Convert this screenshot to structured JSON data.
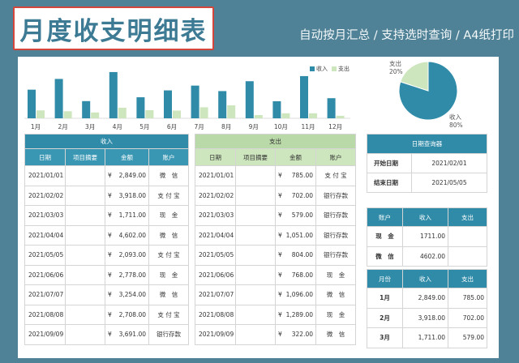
{
  "header": {
    "title": "月度收支明细表",
    "subtitle": "自动按月汇总 / 支持选时查询 / A4纸打印"
  },
  "chart_data": [
    {
      "type": "bar",
      "categories": [
        "1月",
        "2月",
        "3月",
        "4月",
        "5月",
        "6月",
        "7月",
        "8月",
        "9月",
        "10月",
        "11月",
        "12月"
      ],
      "series": [
        {
          "name": "收入",
          "values": [
            2849,
            3918,
            1711,
            4602,
            2093,
            2778,
            3254,
            2708,
            3691,
            1700,
            4200,
            2000
          ]
        },
        {
          "name": "支出",
          "values": [
            785,
            702,
            579,
            1051,
            804,
            768,
            1096,
            1289,
            322,
            500,
            500,
            250
          ]
        }
      ],
      "colors": {
        "收入": "#2f8ba8",
        "支出": "#cde6bd"
      },
      "legend": "top-right",
      "ylim": [
        0,
        5000
      ],
      "grid": false
    },
    {
      "type": "pie",
      "labels": [
        "收入",
        "支出"
      ],
      "values": [
        80,
        20
      ],
      "value_labels": [
        "80%",
        "20%"
      ],
      "colors": {
        "收入": "#2f8ba8",
        "支出": "#cde6bd"
      }
    }
  ],
  "income_table": {
    "title": "收入",
    "columns": [
      "日期",
      "项目摘要",
      "金额",
      "账户"
    ],
    "currency": "¥",
    "rows": [
      {
        "date": "2021/01/01",
        "summary": "",
        "amount": "2,849.00",
        "account": "微　信"
      },
      {
        "date": "2021/02/02",
        "summary": "",
        "amount": "3,918.00",
        "account": "支 付 宝"
      },
      {
        "date": "2021/03/03",
        "summary": "",
        "amount": "1,711.00",
        "account": "现　金"
      },
      {
        "date": "2021/04/04",
        "summary": "",
        "amount": "4,602.00",
        "account": "微　信"
      },
      {
        "date": "2021/05/05",
        "summary": "",
        "amount": "2,093.00",
        "account": "支 付 宝"
      },
      {
        "date": "2021/06/06",
        "summary": "",
        "amount": "2,778.00",
        "account": "现　金"
      },
      {
        "date": "2021/07/07",
        "summary": "",
        "amount": "3,254.00",
        "account": "微　信"
      },
      {
        "date": "2021/08/08",
        "summary": "",
        "amount": "2,708.00",
        "account": "支 付 宝"
      },
      {
        "date": "2021/09/09",
        "summary": "",
        "amount": "3,691.00",
        "account": "银行存款"
      }
    ]
  },
  "expense_table": {
    "title": "支出",
    "columns": [
      "日期",
      "项目摘要",
      "金额",
      "账户"
    ],
    "currency": "¥",
    "rows": [
      {
        "date": "2021/01/01",
        "summary": "",
        "amount": "785.00",
        "account": "支 付 宝"
      },
      {
        "date": "2021/02/02",
        "summary": "",
        "amount": "702.00",
        "account": "银行存款"
      },
      {
        "date": "2021/03/03",
        "summary": "",
        "amount": "579.00",
        "account": "银行存款"
      },
      {
        "date": "2021/04/04",
        "summary": "",
        "amount": "1,051.00",
        "account": "银行存款"
      },
      {
        "date": "2021/05/05",
        "summary": "",
        "amount": "804.00",
        "account": "银行存款"
      },
      {
        "date": "2021/06/06",
        "summary": "",
        "amount": "768.00",
        "account": "现　金"
      },
      {
        "date": "2021/07/07",
        "summary": "",
        "amount": "1,096.00",
        "account": "微　信"
      },
      {
        "date": "2021/08/08",
        "summary": "",
        "amount": "1,289.00",
        "account": "现　金"
      },
      {
        "date": "2021/09/09",
        "summary": "",
        "amount": "322.00",
        "account": "微　信"
      }
    ]
  },
  "date_query": {
    "title": "日期查询器",
    "start_label": "开始日期",
    "start_value": "2021/02/01",
    "end_label": "结束日期",
    "end_value": "2021/05/05"
  },
  "account_summary": {
    "columns": [
      "账户",
      "收入",
      "支出"
    ],
    "rows": [
      {
        "account": "现　金",
        "income": "1711.00",
        "expense": ""
      },
      {
        "account": "微　信",
        "income": "4602.00",
        "expense": ""
      }
    ]
  },
  "month_summary": {
    "columns": [
      "月份",
      "收入",
      "支出"
    ],
    "rows": [
      {
        "month": "1月",
        "income": "2,849.00",
        "expense": "785.00"
      },
      {
        "month": "2月",
        "income": "3,918.00",
        "expense": "702.00"
      },
      {
        "month": "3月",
        "income": "1,711.00",
        "expense": "579.00"
      }
    ]
  }
}
